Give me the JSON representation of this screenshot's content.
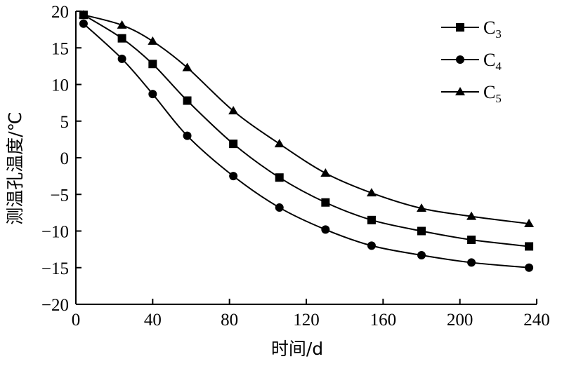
{
  "chart_data": {
    "type": "line",
    "title": "",
    "xlabel": "时间/d",
    "ylabel": "测温孔温度/℃",
    "xlim": [
      0,
      240
    ],
    "ylim": [
      -20,
      20
    ],
    "xticks": [
      0,
      40,
      80,
      120,
      160,
      200,
      240
    ],
    "yticks": [
      20,
      15,
      10,
      5,
      0,
      -5,
      -10,
      -15,
      -20
    ],
    "grid": false,
    "legend_position": "top-right",
    "series": [
      {
        "name": "C3",
        "label_main": "C",
        "label_sub": "3",
        "marker": "square",
        "x": [
          4,
          24,
          40,
          58,
          82,
          106,
          130,
          154,
          180,
          206,
          236
        ],
        "values": [
          19.5,
          16.3,
          12.8,
          7.8,
          1.9,
          -2.7,
          -6.1,
          -8.5,
          -10.0,
          -11.2,
          -12.1
        ]
      },
      {
        "name": "C4",
        "label_main": "C",
        "label_sub": "4",
        "marker": "circle",
        "x": [
          4,
          24,
          40,
          58,
          82,
          106,
          130,
          154,
          180,
          206,
          236
        ],
        "values": [
          18.3,
          13.5,
          8.7,
          3.0,
          -2.5,
          -6.8,
          -9.8,
          -12.0,
          -13.3,
          -14.3,
          -15.0
        ]
      },
      {
        "name": "C5",
        "label_main": "C",
        "label_sub": "5",
        "marker": "triangle",
        "x": [
          4,
          24,
          40,
          58,
          82,
          106,
          130,
          154,
          180,
          206,
          236
        ],
        "values": [
          19.5,
          18.1,
          15.9,
          12.3,
          6.4,
          1.9,
          -2.1,
          -4.8,
          -6.9,
          -8.0,
          -9.0
        ]
      }
    ]
  }
}
